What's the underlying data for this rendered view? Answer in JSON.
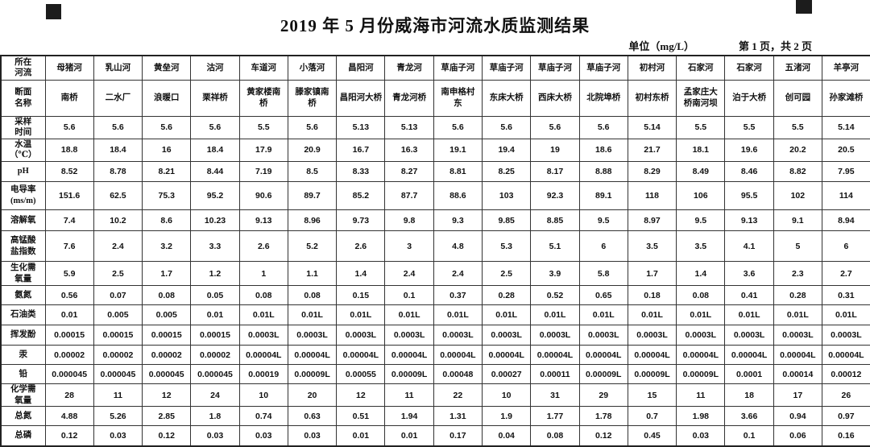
{
  "page": {
    "title": "2019 年 5 月份威海市河流水质监测结果",
    "unit_label": "单位（mg/L）",
    "page_label": "第 1 页，共 2 页"
  },
  "chart_data": {
    "type": "table",
    "title": "2019 年 5 月份威海市河流水质监测结果",
    "unit": "mg/L"
  },
  "table": {
    "rows": [
      {
        "label": "所在\n河流",
        "values": [
          "母猪河",
          "乳山河",
          "黄垒河",
          "沽河",
          "车道河",
          "小落河",
          "昌阳河",
          "青龙河",
          "草庙子河",
          "草庙子河",
          "草庙子河",
          "草庙子河",
          "初村河",
          "石家河",
          "石家河",
          "五渚河",
          "羊亭河"
        ]
      },
      {
        "label": "断面\n名称",
        "values": [
          "南桥",
          "二水厂",
          "浪暖口",
          "栗祥桥",
          "黄家楼南\n桥",
          "滕家镇南\n桥",
          "昌阳河大桥",
          "青龙河桥",
          "南申格村\n东",
          "东床大桥",
          "西床大桥",
          "北院埠桥",
          "初村东桥",
          "孟家庄大\n桥南河坝",
          "泊于大桥",
          "创可园",
          "孙家滩桥"
        ]
      },
      {
        "label": "采样\n时间",
        "values": [
          "5.6",
          "5.6",
          "5.6",
          "5.6",
          "5.5",
          "5.6",
          "5.13",
          "5.13",
          "5.6",
          "5.6",
          "5.6",
          "5.6",
          "5.14",
          "5.5",
          "5.5",
          "5.5",
          "5.14"
        ]
      },
      {
        "label": "水温\n（℃）",
        "values": [
          "18.8",
          "18.4",
          "16",
          "18.4",
          "17.9",
          "20.9",
          "16.7",
          "16.3",
          "19.1",
          "19.4",
          "19",
          "18.6",
          "21.7",
          "18.1",
          "19.6",
          "20.2",
          "20.5"
        ]
      },
      {
        "label": "pH",
        "values": [
          "8.52",
          "8.78",
          "8.21",
          "8.44",
          "7.19",
          "8.5",
          "8.33",
          "8.27",
          "8.81",
          "8.25",
          "8.17",
          "8.88",
          "8.29",
          "8.49",
          "8.46",
          "8.82",
          "7.95"
        ]
      },
      {
        "label": "电导率\n(ms/m)",
        "values": [
          "151.6",
          "62.5",
          "75.3",
          "95.2",
          "90.6",
          "89.7",
          "85.2",
          "87.7",
          "88.6",
          "103",
          "92.3",
          "89.1",
          "118",
          "106",
          "95.5",
          "102",
          "114"
        ]
      },
      {
        "label": "溶解氧",
        "values": [
          "7.4",
          "10.2",
          "8.6",
          "10.23",
          "9.13",
          "8.96",
          "9.73",
          "9.8",
          "9.3",
          "9.85",
          "8.85",
          "9.5",
          "8.97",
          "9.5",
          "9.13",
          "9.1",
          "8.94"
        ]
      },
      {
        "label": "高锰酸\n盐指数",
        "values": [
          "7.6",
          "2.4",
          "3.2",
          "3.3",
          "2.6",
          "5.2",
          "2.6",
          "3",
          "4.8",
          "5.3",
          "5.1",
          "6",
          "3.5",
          "3.5",
          "4.1",
          "5",
          "6"
        ]
      },
      {
        "label": "生化需\n氧量",
        "values": [
          "5.9",
          "2.5",
          "1.7",
          "1.2",
          "1",
          "1.1",
          "1.4",
          "2.4",
          "2.4",
          "2.5",
          "3.9",
          "5.8",
          "1.7",
          "1.4",
          "3.6",
          "2.3",
          "2.7"
        ]
      },
      {
        "label": "氨氮",
        "values": [
          "0.56",
          "0.07",
          "0.08",
          "0.05",
          "0.08",
          "0.08",
          "0.15",
          "0.1",
          "0.37",
          "0.28",
          "0.52",
          "0.65",
          "0.18",
          "0.08",
          "0.41",
          "0.28",
          "0.31"
        ]
      },
      {
        "label": "石油类",
        "values": [
          "0.01",
          "0.005",
          "0.005",
          "0.01",
          "0.01L",
          "0.01L",
          "0.01L",
          "0.01L",
          "0.01L",
          "0.01L",
          "0.01L",
          "0.01L",
          "0.01L",
          "0.01L",
          "0.01L",
          "0.01L",
          "0.01L"
        ]
      },
      {
        "label": "挥发酚",
        "values": [
          "0.00015",
          "0.00015",
          "0.00015",
          "0.00015",
          "0.0003L",
          "0.0003L",
          "0.0003L",
          "0.0003L",
          "0.0003L",
          "0.0003L",
          "0.0003L",
          "0.0003L",
          "0.0003L",
          "0.0003L",
          "0.0003L",
          "0.0003L",
          "0.0003L"
        ]
      },
      {
        "label": "汞",
        "values": [
          "0.00002",
          "0.00002",
          "0.00002",
          "0.00002",
          "0.00004L",
          "0.00004L",
          "0.00004L",
          "0.00004L",
          "0.00004L",
          "0.00004L",
          "0.00004L",
          "0.00004L",
          "0.00004L",
          "0.00004L",
          "0.00004L",
          "0.00004L",
          "0.00004L"
        ]
      },
      {
        "label": "铅",
        "values": [
          "0.000045",
          "0.000045",
          "0.000045",
          "0.000045",
          "0.00019",
          "0.00009L",
          "0.00055",
          "0.00009L",
          "0.00048",
          "0.00027",
          "0.00011",
          "0.00009L",
          "0.00009L",
          "0.00009L",
          "0.0001",
          "0.00014",
          "0.00012"
        ]
      },
      {
        "label": "化学需\n氧量",
        "values": [
          "28",
          "11",
          "12",
          "24",
          "10",
          "20",
          "12",
          "11",
          "22",
          "10",
          "31",
          "29",
          "15",
          "11",
          "18",
          "17",
          "26"
        ]
      },
      {
        "label": "总氮",
        "values": [
          "4.88",
          "5.26",
          "2.85",
          "1.8",
          "0.74",
          "0.63",
          "0.51",
          "1.94",
          "1.31",
          "1.9",
          "1.77",
          "1.78",
          "0.7",
          "1.98",
          "3.66",
          "0.94",
          "0.97"
        ]
      },
      {
        "label": "总磷",
        "values": [
          "0.12",
          "0.03",
          "0.12",
          "0.03",
          "0.03",
          "0.03",
          "0.01",
          "0.01",
          "0.17",
          "0.04",
          "0.08",
          "0.12",
          "0.45",
          "0.03",
          "0.1",
          "0.06",
          "0.16"
        ]
      }
    ]
  }
}
